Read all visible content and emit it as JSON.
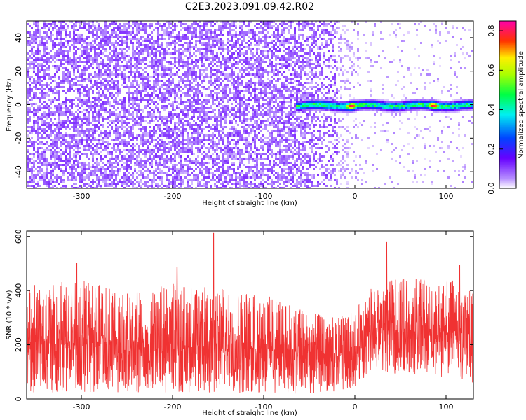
{
  "title": "C2E3.2023.091.09.42.R02",
  "chart_data": [
    {
      "type": "heatmap",
      "xlabel": "Height of straight line (km)",
      "ylabel": "Frequency (Hz)",
      "xlim": [
        -360,
        130
      ],
      "ylim": [
        -50,
        50
      ],
      "xticks": [
        -300,
        -200,
        -100,
        0,
        100
      ],
      "yticks": [
        -40,
        -20,
        0,
        20,
        40
      ],
      "colorbar": {
        "label": "Normalized spectral amplitude",
        "range": [
          0.0,
          0.85
        ],
        "ticks": [
          0.0,
          0.2,
          0.4,
          0.6,
          0.8
        ]
      },
      "signal_track": {
        "frequency_hz": 0,
        "x_start": -65,
        "x_end": 130,
        "peak_x": [
          -5,
          85
        ],
        "peak_amplitude": 0.82
      },
      "noise_background": {
        "amplitude": 0.1,
        "fades_after_x": -60
      }
    },
    {
      "type": "line",
      "color": "#f03232",
      "xlabel": "Height of straight line (km)",
      "ylabel": "SNR (10 * v/v)",
      "xlim": [
        -360,
        130
      ],
      "ylim": [
        0,
        620
      ],
      "xticks": [
        -300,
        -200,
        -100,
        0,
        100
      ],
      "yticks": [
        0,
        200,
        400,
        600
      ],
      "envelope": {
        "x": [
          -360,
          -300,
          -250,
          -200,
          -150,
          -100,
          -50,
          -20,
          0,
          20,
          50,
          100,
          130
        ],
        "upper": [
          420,
          440,
          390,
          430,
          410,
          390,
          320,
          300,
          330,
          420,
          450,
          440,
          430
        ],
        "lower": [
          20,
          25,
          20,
          25,
          20,
          20,
          20,
          20,
          40,
          100,
          90,
          80,
          60
        ]
      },
      "spikes": [
        {
          "x": -155,
          "y": 612
        },
        {
          "x": -305,
          "y": 500
        },
        {
          "x": -195,
          "y": 485
        },
        {
          "x": 35,
          "y": 578
        },
        {
          "x": 115,
          "y": 495
        }
      ]
    }
  ]
}
